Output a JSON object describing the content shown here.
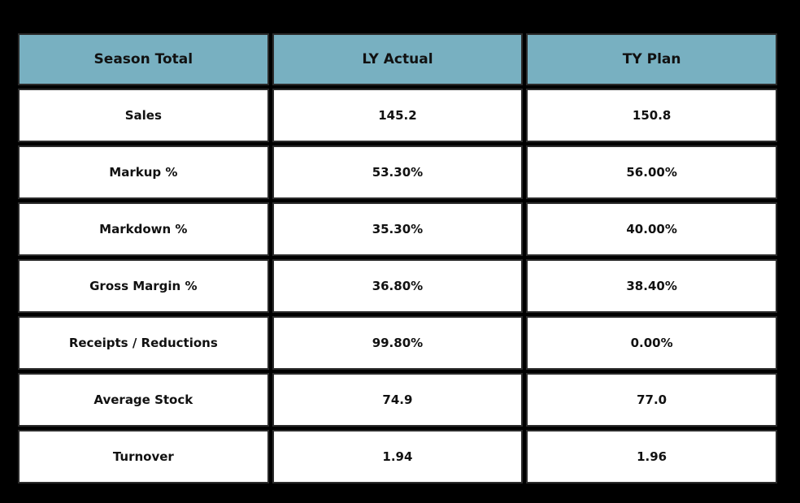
{
  "colors": {
    "background": "#000000",
    "header_fill": "#78b0c1",
    "cell_fill": "#ffffff",
    "cell_border": "#2b2b2b",
    "text": "#111111"
  },
  "chart_data": {
    "type": "table",
    "columns": [
      "Season Total",
      "LY Actual",
      "TY Plan"
    ],
    "rows": [
      [
        "Sales",
        "145.2",
        "150.8"
      ],
      [
        "Markup %",
        "53.30%",
        "56.00%"
      ],
      [
        "Markdown %",
        "35.30%",
        "40.00%"
      ],
      [
        "Gross Margin %",
        "36.80%",
        "38.40%"
      ],
      [
        "Receipts / Reductions",
        "99.80%",
        "0.00%"
      ],
      [
        "Average Stock",
        "74.9",
        "77.0"
      ],
      [
        "Turnover",
        "1.94",
        "1.96"
      ]
    ]
  }
}
